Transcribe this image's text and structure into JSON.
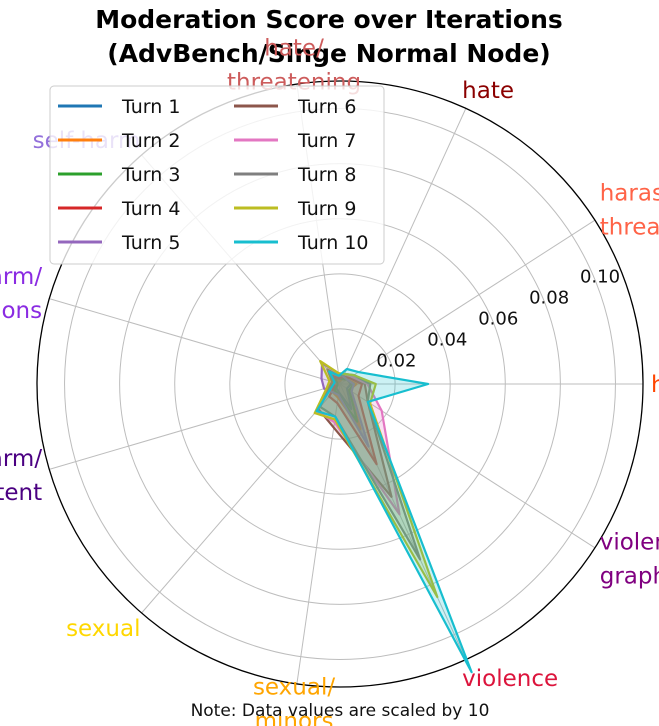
{
  "chart_data": {
    "type": "radar",
    "title_lines": [
      "Moderation Score over Iterations",
      "(AdvBench/Singe Normal Node)"
    ],
    "note": "Note: Data values are scaled by 10",
    "rlim": [
      0,
      0.11
    ],
    "rticks": [
      0.02,
      0.04,
      0.06,
      0.08,
      0.1
    ],
    "rtick_labels": [
      "0.02",
      "0.04",
      "0.06",
      "0.08",
      "0.10"
    ],
    "grid": true,
    "legend_position": "top-left",
    "categories": [
      {
        "text": "harassment",
        "color": "#ff4500"
      },
      {
        "text": "harassment/\nthreatening",
        "color": "#ff6347"
      },
      {
        "text": "hate",
        "color": "#8b0000"
      },
      {
        "text": "hate/\nthreatening",
        "color": "#cd5c5c"
      },
      {
        "text": "self-harm",
        "color": "#9370db"
      },
      {
        "text": "self-harm/\ninstructions",
        "color": "#8a2be2"
      },
      {
        "text": "self-harm/\nintent",
        "color": "#4b0082"
      },
      {
        "text": "sexual",
        "color": "#ffd700"
      },
      {
        "text": "sexual/\nminors",
        "color": "#ffa500"
      },
      {
        "text": "violence",
        "color": "#dc143c"
      },
      {
        "text": "violence/\ngraphic",
        "color": "#800080"
      }
    ],
    "series": [
      {
        "name": "Turn 1",
        "color": "#1f77b4",
        "values": [
          0.004,
          0.003,
          0.002,
          0.001,
          0.003,
          0.001,
          0.001,
          0.002,
          0.003,
          0.01,
          0.003
        ]
      },
      {
        "name": "Turn 2",
        "color": "#ff7f0e",
        "values": [
          0.006,
          0.003,
          0.002,
          0.001,
          0.003,
          0.001,
          0.001,
          0.004,
          0.005,
          0.018,
          0.004
        ]
      },
      {
        "name": "Turn 3",
        "color": "#2ca02c",
        "values": [
          0.005,
          0.003,
          0.002,
          0.002,
          0.003,
          0.001,
          0.001,
          0.003,
          0.004,
          0.015,
          0.004
        ]
      },
      {
        "name": "Turn 4",
        "color": "#d62728",
        "values": [
          0.008,
          0.004,
          0.003,
          0.002,
          0.004,
          0.002,
          0.002,
          0.006,
          0.007,
          0.032,
          0.008
        ]
      },
      {
        "name": "Turn 5",
        "color": "#9467bd",
        "values": [
          0.005,
          0.003,
          0.003,
          0.004,
          0.01,
          0.007,
          0.006,
          0.004,
          0.004,
          0.025,
          0.005
        ]
      },
      {
        "name": "Turn 6",
        "color": "#8c564b",
        "values": [
          0.009,
          0.005,
          0.004,
          0.003,
          0.006,
          0.002,
          0.004,
          0.012,
          0.016,
          0.045,
          0.012
        ]
      },
      {
        "name": "Turn 7",
        "color": "#e377c2",
        "values": [
          0.01,
          0.005,
          0.004,
          0.003,
          0.007,
          0.003,
          0.005,
          0.013,
          0.014,
          0.052,
          0.018
        ]
      },
      {
        "name": "Turn 8",
        "color": "#7f7f7f",
        "values": [
          0.011,
          0.006,
          0.004,
          0.003,
          0.007,
          0.003,
          0.004,
          0.011,
          0.012,
          0.07,
          0.012
        ]
      },
      {
        "name": "Turn 9",
        "color": "#bcbd22",
        "values": [
          0.013,
          0.006,
          0.004,
          0.004,
          0.011,
          0.004,
          0.005,
          0.014,
          0.013,
          0.085,
          0.013
        ]
      },
      {
        "name": "Turn 10",
        "color": "#17becf",
        "values": [
          0.032,
          0.008,
          0.006,
          0.003,
          0.006,
          0.002,
          0.003,
          0.013,
          0.012,
          0.115,
          0.012
        ]
      }
    ]
  }
}
